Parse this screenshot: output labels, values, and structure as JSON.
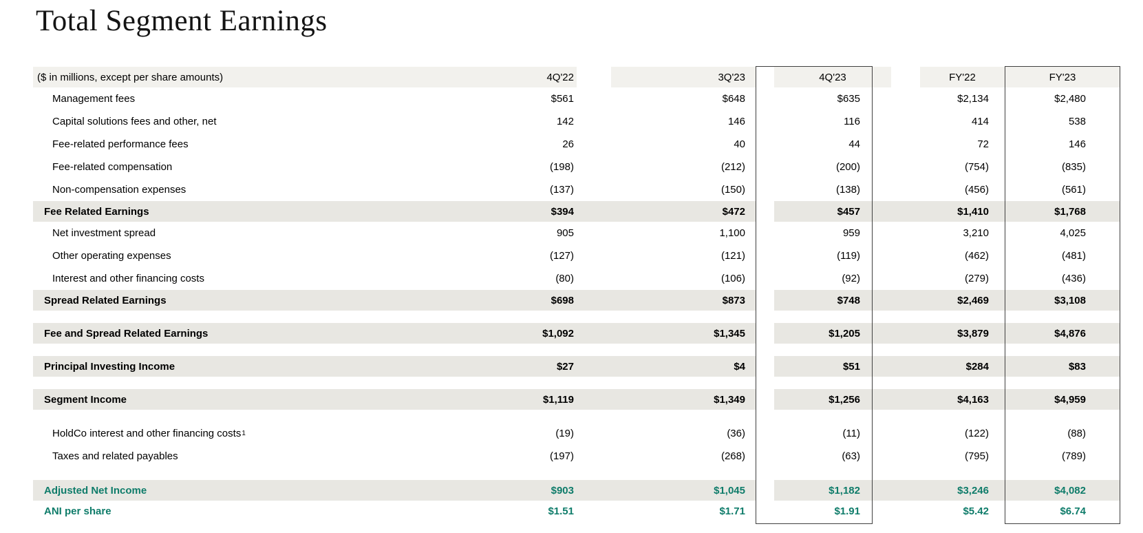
{
  "title": "Total Segment Earnings",
  "colors": {
    "header_row_bg": "#f2f1ed",
    "subtotal_row_bg": "#e8e7e2",
    "accent_green": "#0f7c6a",
    "highlight_box_border": "#3f3f3f",
    "text": "#000000"
  },
  "table": {
    "header_label": "($ in millions, except per share amounts)",
    "columns": [
      "4Q'22",
      "3Q'23",
      "4Q'23",
      "FY'22",
      "FY'23"
    ],
    "boxed_columns": [
      "4Q'23",
      "FY'23"
    ],
    "rows": [
      {
        "type": "item",
        "label": "Management fees",
        "values": [
          "$561",
          "$648",
          "$635",
          "$2,134",
          "$2,480"
        ]
      },
      {
        "type": "item",
        "label": "Capital solutions fees and other, net",
        "values": [
          "142",
          "146",
          "116",
          "414",
          "538"
        ]
      },
      {
        "type": "item",
        "label": "Fee-related performance fees",
        "values": [
          "26",
          "40",
          "44",
          "72",
          "146"
        ]
      },
      {
        "type": "item",
        "label": "Fee-related compensation",
        "values": [
          "(198)",
          "(212)",
          "(200)",
          "(754)",
          "(835)"
        ]
      },
      {
        "type": "item",
        "label": "Non-compensation expenses",
        "values": [
          "(137)",
          "(150)",
          "(138)",
          "(456)",
          "(561)"
        ]
      },
      {
        "type": "subtotal",
        "label": "Fee Related Earnings",
        "values": [
          "$394",
          "$472",
          "$457",
          "$1,410",
          "$1,768"
        ]
      },
      {
        "type": "item",
        "label": "Net investment spread",
        "values": [
          "905",
          "1,100",
          "959",
          "3,210",
          "4,025"
        ]
      },
      {
        "type": "item",
        "label": "Other operating expenses",
        "values": [
          "(127)",
          "(121)",
          "(119)",
          "(462)",
          "(481)"
        ]
      },
      {
        "type": "item",
        "label": "Interest and other financing costs",
        "values": [
          "(80)",
          "(106)",
          "(92)",
          "(279)",
          "(436)"
        ]
      },
      {
        "type": "subtotal",
        "label": "Spread Related Earnings",
        "values": [
          "$698",
          "$873",
          "$748",
          "$2,469",
          "$3,108"
        ]
      },
      {
        "type": "gap"
      },
      {
        "type": "subtotal",
        "label": "Fee and Spread Related Earnings",
        "values": [
          "$1,092",
          "$1,345",
          "$1,205",
          "$3,879",
          "$4,876"
        ]
      },
      {
        "type": "gap"
      },
      {
        "type": "subtotal",
        "label": "Principal Investing Income",
        "values": [
          "$27",
          "$4",
          "$51",
          "$284",
          "$83"
        ]
      },
      {
        "type": "gap"
      },
      {
        "type": "subtotal",
        "label": "Segment Income",
        "values": [
          "$1,119",
          "$1,349",
          "$1,256",
          "$4,163",
          "$4,959"
        ]
      },
      {
        "type": "gap"
      },
      {
        "type": "item",
        "label": "HoldCo interest and other financing costs",
        "sup": "1",
        "values": [
          "(19)",
          "(36)",
          "(11)",
          "(122)",
          "(88)"
        ]
      },
      {
        "type": "item",
        "label": "Taxes and related payables",
        "values": [
          "(197)",
          "(268)",
          "(63)",
          "(795)",
          "(789)"
        ]
      },
      {
        "type": "gap"
      },
      {
        "type": "highlight",
        "label": "Adjusted Net Income",
        "values": [
          "$903",
          "$1,045",
          "$1,182",
          "$3,246",
          "$4,082"
        ]
      },
      {
        "type": "pershare",
        "label": "ANI per share",
        "values": [
          "$1.51",
          "$1.71",
          "$1.91",
          "$5.42",
          "$6.74"
        ]
      }
    ]
  }
}
